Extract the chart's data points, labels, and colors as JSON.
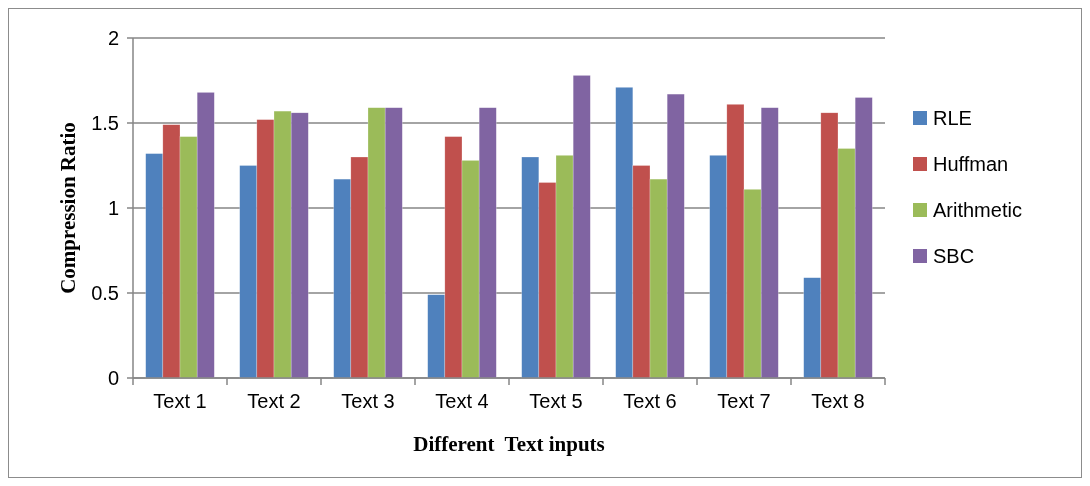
{
  "chart_data": {
    "type": "bar",
    "xlabel": "Different  Text inputs",
    "ylabel": "Compression Ratio",
    "categories": [
      "Text 1",
      "Text 2",
      "Text 3",
      "Text 4",
      "Text 5",
      "Text 6",
      "Text 7",
      "Text 8"
    ],
    "series": [
      {
        "name": "RLE",
        "color": "#4f81bd",
        "values": [
          1.32,
          1.25,
          1.17,
          0.49,
          1.3,
          1.71,
          1.31,
          0.59
        ]
      },
      {
        "name": "Huffman",
        "color": "#c0504d",
        "values": [
          1.49,
          1.52,
          1.3,
          1.42,
          1.15,
          1.25,
          1.61,
          1.56
        ]
      },
      {
        "name": "Arithmetic",
        "color": "#9bbb59",
        "values": [
          1.42,
          1.57,
          1.59,
          1.28,
          1.31,
          1.17,
          1.11,
          1.35
        ]
      },
      {
        "name": "SBC",
        "color": "#8064a2",
        "values": [
          1.68,
          1.56,
          1.59,
          1.59,
          1.78,
          1.67,
          1.59,
          1.65
        ]
      }
    ],
    "ylim": [
      0,
      2
    ],
    "yticks": [
      0,
      0.5,
      1,
      1.5,
      2
    ],
    "grid": "y",
    "legend": "right"
  }
}
